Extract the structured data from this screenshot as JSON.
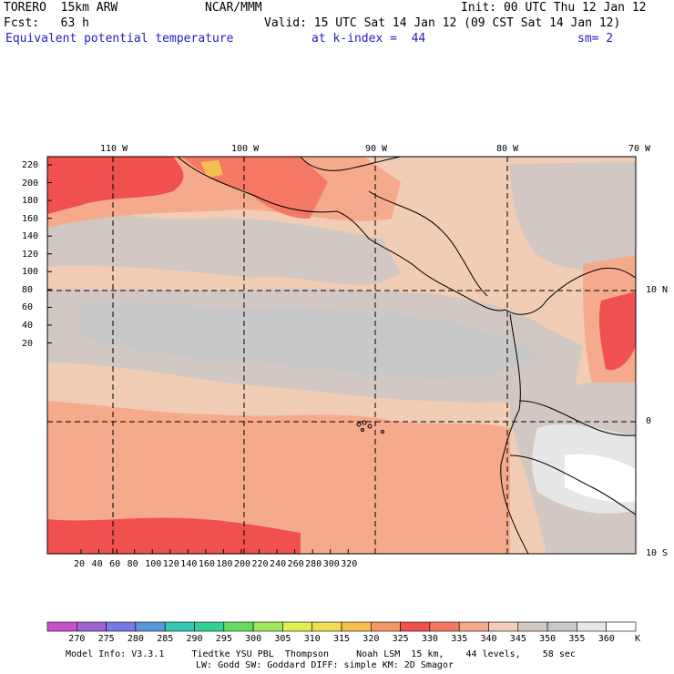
{
  "header": {
    "model": "TORERO  15km ARW",
    "org": "NCAR/MMM",
    "init": "Init: 00 UTC Thu 12 Jan 12",
    "fcst": "Fcst:   63 h",
    "valid": "Valid: 15 UTC Sat 14 Jan 12 (09 CST Sat 14 Jan 12)",
    "field": "Equivalent potential temperature",
    "level": "at k-index =  44",
    "smooth": "sm= 2"
  },
  "map": {
    "lon_labels": [
      "110 W",
      "100 W",
      "90 W",
      "80 W",
      "70 W"
    ],
    "lat_labels": [
      "10 N",
      "0",
      "10 S"
    ],
    "y_ticks": [
      "220",
      "200",
      "180",
      "160",
      "140",
      "120",
      "100",
      "80",
      "60",
      "40",
      "20"
    ],
    "x_ticks": [
      "20",
      "40",
      "60",
      "80",
      "100",
      "120",
      "140",
      "160",
      "180",
      "200",
      "220",
      "240",
      "260",
      "280",
      "300",
      "320"
    ],
    "background_color": "#f0cdb4"
  },
  "colorbar": {
    "unit": "K",
    "labels": [
      "270",
      "275",
      "280",
      "285",
      "290",
      "295",
      "300",
      "305",
      "310",
      "315",
      "320",
      "325",
      "330",
      "335",
      "340",
      "345",
      "350",
      "355",
      "360"
    ],
    "colors": [
      "#c850c8",
      "#a064d2",
      "#7878e6",
      "#5a96dc",
      "#32c8b4",
      "#32d296",
      "#64dc64",
      "#a0e65a",
      "#dcf050",
      "#f0dc50",
      "#f5be50",
      "#f59664",
      "#f05050",
      "#f57864",
      "#f5aa8c",
      "#f0cdb4",
      "#d2c8c3",
      "#c8c8c8",
      "#e6e6e6",
      "#ffffff"
    ]
  },
  "footer": {
    "line1": "Model Info: V3.3.1     Tiedtke YSU PBL  Thompson     Noah LSM  15 km,    44 levels,    58 sec",
    "line2": "LW: Godd SW: Goddard DIFF: simple KM: 2D Smagor"
  }
}
